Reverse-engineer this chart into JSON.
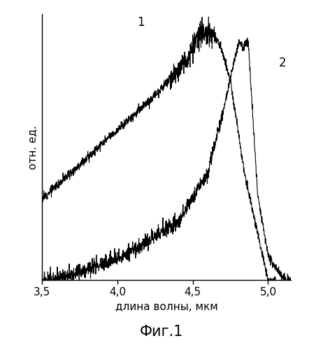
{
  "xlabel": "длина волны, мкм",
  "ylabel": "отн. ед.",
  "figure_title": "Фиг.1",
  "label1": "1",
  "label2": "2",
  "xlim": [
    3.5,
    5.15
  ],
  "ylim": [
    0,
    1.08
  ],
  "xticks": [
    3.5,
    4.0,
    4.5,
    5.0
  ],
  "line_color": "#000000",
  "bg_color": "#ffffff"
}
